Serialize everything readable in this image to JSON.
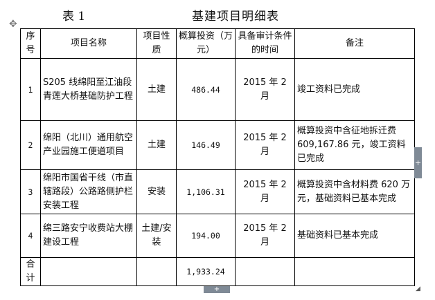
{
  "caption": {
    "label": "表 1",
    "title": "基建项目明细表"
  },
  "headers": [
    "序号",
    "项目名称",
    "项目性质",
    "概算投资（万元）",
    "具备审计条件的时间",
    "备注"
  ],
  "rows": [
    {
      "no": "1",
      "name": "S205 线绵阳至江油段青莲大桥基础防护工程",
      "type": "土建",
      "amount": "486.44",
      "time": "2015 年 2 月",
      "note": "竣工资料已完成"
    },
    {
      "no": "2",
      "name": "绵阳（北川）通用航空产业园施工便道项目",
      "type": "土建",
      "amount": "146.49",
      "time": "2015 年 2 月",
      "note": "概算投资中含征地拆迁费 609,167.86 元，竣工资料已完成"
    },
    {
      "no": "3",
      "name": "绵阳市国省干线（市直辖路段）公路路侧护栏安装工程",
      "type": "安装",
      "amount": "1,106.31",
      "time": "2015 年 2 月",
      "note": "概算投资中含材料费 620 万元，基础资料已基本完成"
    },
    {
      "no": "4",
      "name": "绵三路安宁收费站大棚建设工程",
      "type": "土建/安装",
      "amount": "194.00",
      "time": "2015 年 2 月",
      "note": "基础资料已基本完成"
    }
  ],
  "total": {
    "label": "合计",
    "amount": "1,933.24"
  }
}
